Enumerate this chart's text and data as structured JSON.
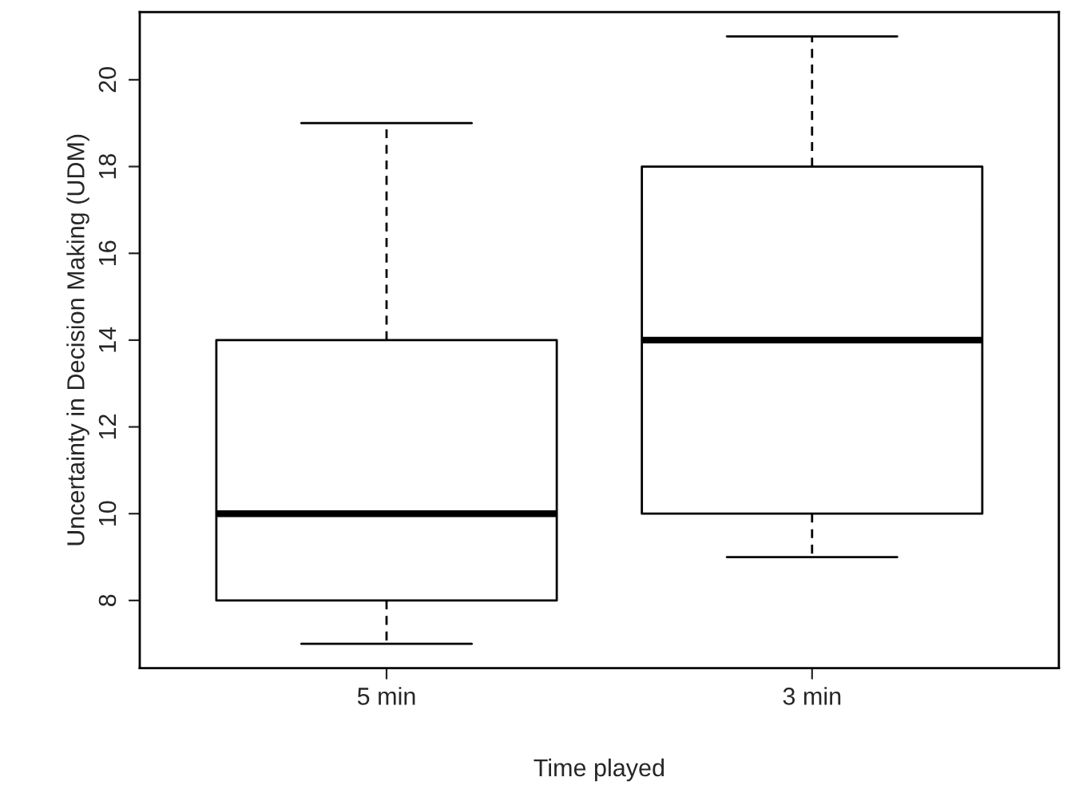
{
  "chart_data": {
    "type": "box",
    "xlabel": "Time played",
    "ylabel": "Uncertainty in Decision Making (UDM)",
    "categories": [
      "5 min",
      "3 min"
    ],
    "boxes": [
      {
        "low": 7,
        "q1": 8,
        "median": 10,
        "q3": 14,
        "high": 19
      },
      {
        "low": 9,
        "q1": 10,
        "median": 14,
        "q3": 18,
        "high": 21
      }
    ],
    "ylim": [
      6.44,
      21.56
    ],
    "yticks": [
      8,
      10,
      12,
      14,
      16,
      18,
      20
    ],
    "grid": false
  }
}
